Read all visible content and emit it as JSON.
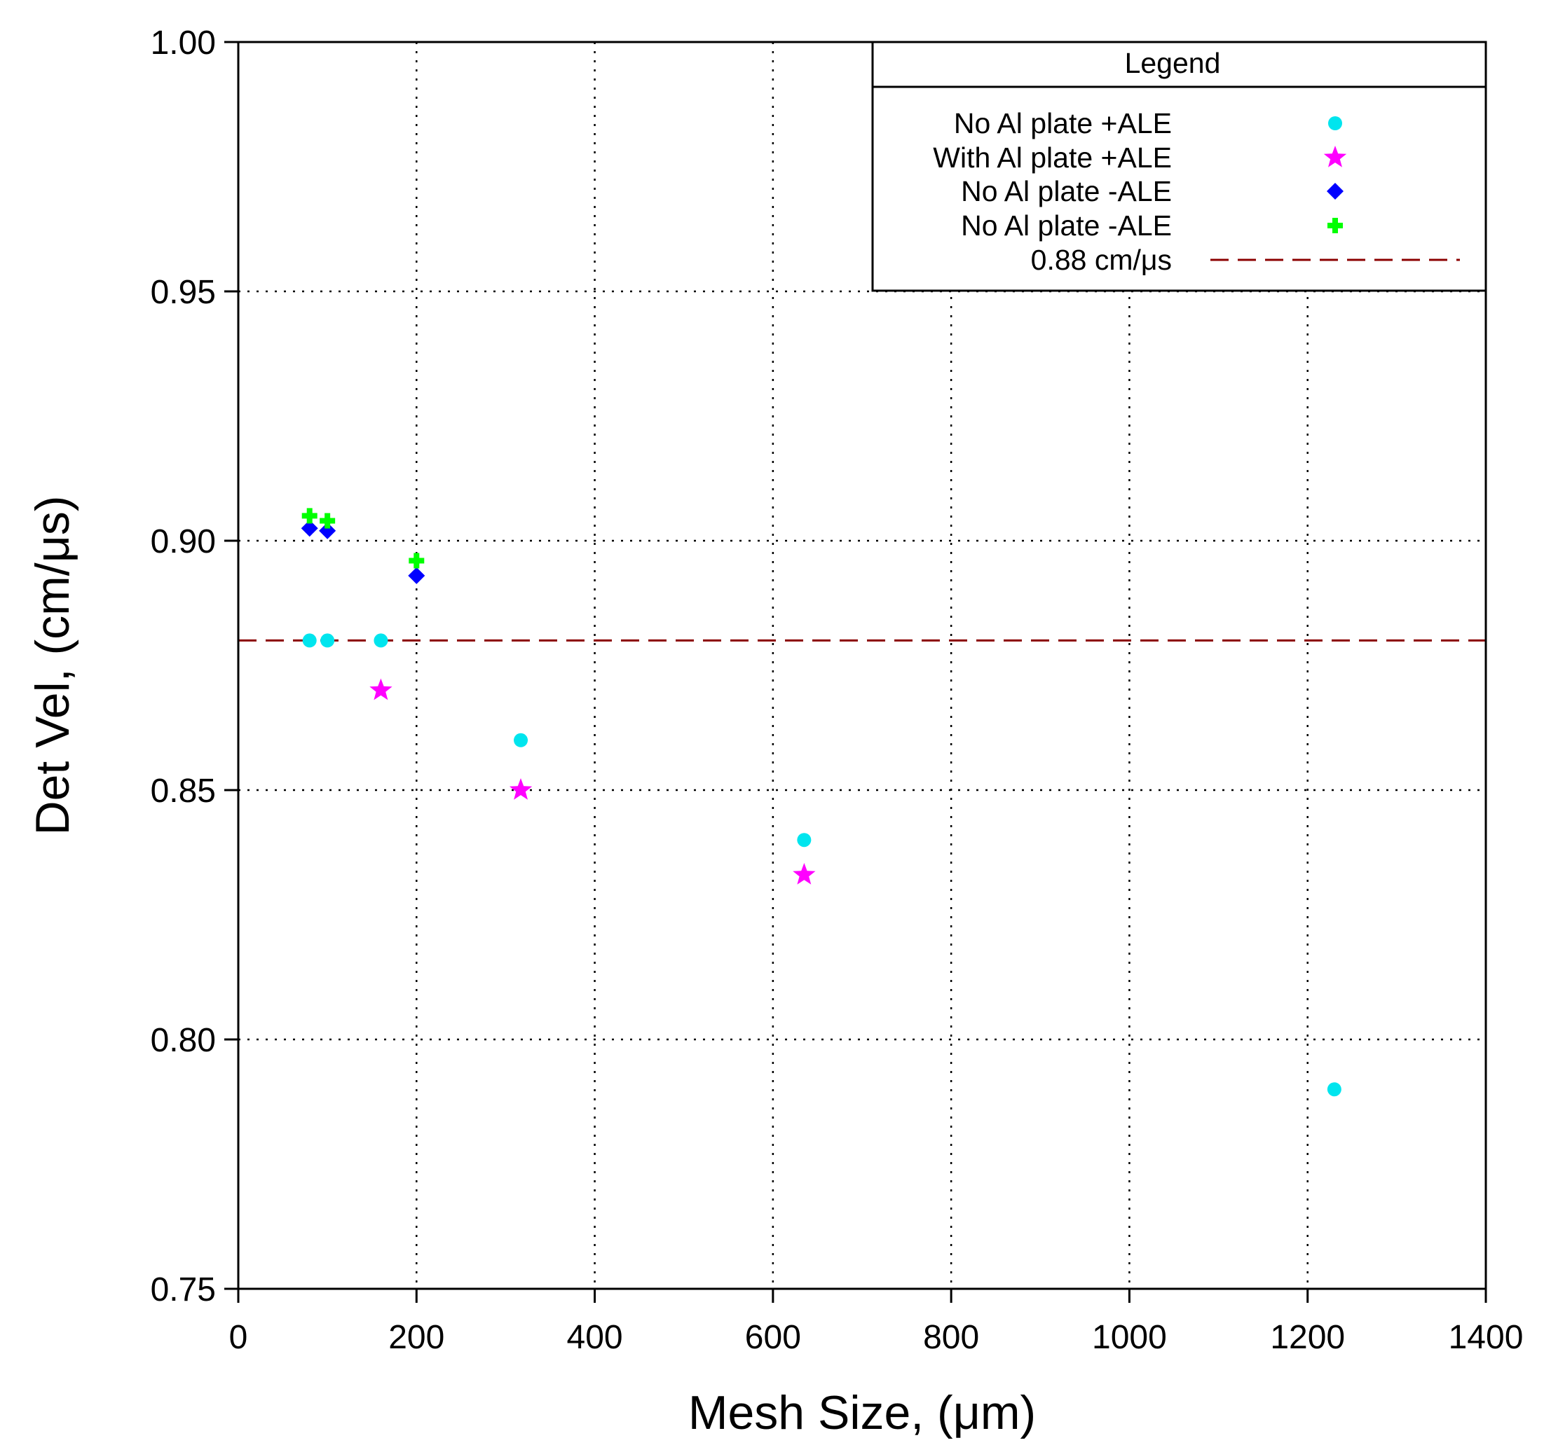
{
  "chart_data": {
    "type": "scatter",
    "title": "",
    "xlabel": "Mesh Size, (μm)",
    "ylabel": "Det Vel, (cm/μs)",
    "xlim": [
      0,
      1400
    ],
    "ylim": [
      0.75,
      1.0
    ],
    "x_ticks": [
      0,
      200,
      400,
      600,
      800,
      1000,
      1200,
      1400
    ],
    "x_tick_labels": [
      "0",
      "200",
      "400",
      "600",
      "800",
      "1000",
      "1200",
      "1400"
    ],
    "y_ticks": [
      0.75,
      0.8,
      0.85,
      0.9,
      0.95,
      1.0
    ],
    "y_tick_labels": [
      "0.75",
      "0.80",
      "0.85",
      "0.90",
      "0.95",
      "1.00"
    ],
    "grid": true,
    "legend": {
      "title": "Legend",
      "position": "top-right"
    },
    "series": [
      {
        "name": "No Al plate +ALE",
        "marker": "circle",
        "color": "#00e5ee",
        "points": [
          [
            80,
            0.88
          ],
          [
            100,
            0.88
          ],
          [
            160,
            0.88
          ],
          [
            317,
            0.86
          ],
          [
            635,
            0.84
          ],
          [
            1230,
            0.79
          ]
        ]
      },
      {
        "name": "With Al plate +ALE",
        "marker": "star",
        "color": "#ff00ff",
        "points": [
          [
            160,
            0.87
          ],
          [
            317,
            0.85
          ],
          [
            635,
            0.833
          ]
        ]
      },
      {
        "name": "No Al plate -ALE",
        "marker": "diamond",
        "color": "#0000ff",
        "points": [
          [
            80,
            0.9025
          ],
          [
            100,
            0.902
          ],
          [
            200,
            0.893
          ]
        ]
      },
      {
        "name": "No Al plate -ALE",
        "marker": "plus",
        "color": "#00ff00",
        "points": [
          [
            80,
            0.905
          ],
          [
            100,
            0.904
          ],
          [
            200,
            0.896
          ]
        ]
      }
    ],
    "reference_line": {
      "name": "0.88 cm/μs",
      "y": 0.88,
      "style": "dashed",
      "color": "#8b0000"
    }
  }
}
